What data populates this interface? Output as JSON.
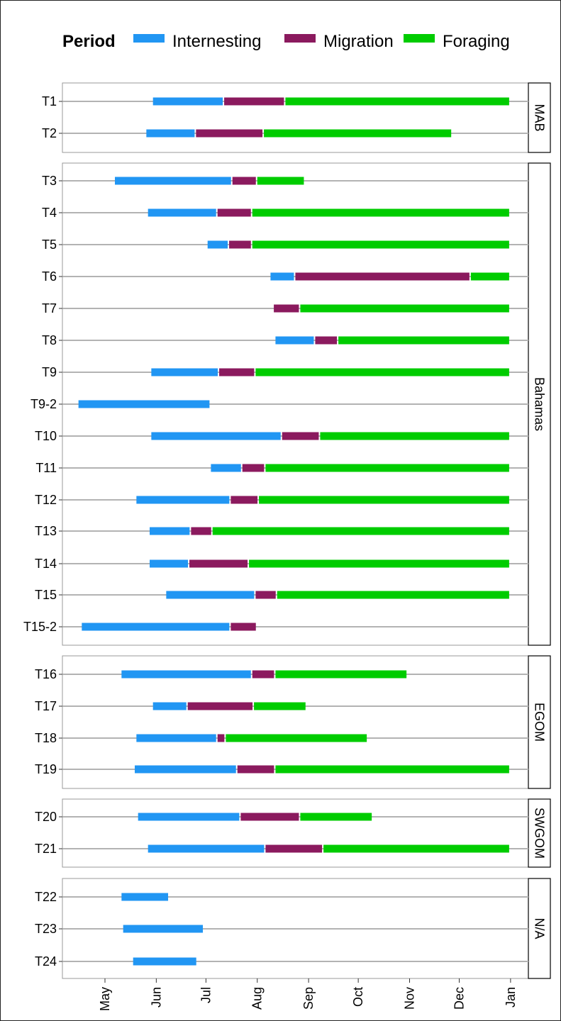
{
  "chart_data": {
    "type": "gantt",
    "legend": {
      "title": "Period",
      "position": "top",
      "entries": [
        {
          "name": "Internesting",
          "color": "#2196F3"
        },
        {
          "name": "Migration",
          "color": "#8B1A5E"
        },
        {
          "name": "Foraging",
          "color": "#00CC00"
        }
      ]
    },
    "x_axis": {
      "ticks": [
        "May",
        "Jun",
        "Jul",
        "Aug",
        "Sep",
        "Oct",
        "Nov",
        "Dec",
        "Jan"
      ],
      "range": [
        "2000-04-12",
        "2001-01-07"
      ]
    },
    "grid": false,
    "facets": [
      {
        "label": "MAB",
        "tracks": [
          {
            "id": "T1",
            "segments": [
              {
                "period": "Internesting",
                "start": "2000-05-30",
                "end": "2000-07-12"
              },
              {
                "period": "Migration",
                "start": "2000-07-12",
                "end": "2000-08-18"
              },
              {
                "period": "Foraging",
                "start": "2000-08-18",
                "end": "2001-01-01"
              }
            ]
          },
          {
            "id": "T2",
            "segments": [
              {
                "period": "Internesting",
                "start": "2000-05-26",
                "end": "2000-06-25"
              },
              {
                "period": "Migration",
                "start": "2000-06-25",
                "end": "2000-08-05"
              },
              {
                "period": "Foraging",
                "start": "2000-08-05",
                "end": "2000-11-27"
              }
            ]
          }
        ]
      },
      {
        "label": "Bahamas",
        "tracks": [
          {
            "id": "T3",
            "segments": [
              {
                "period": "Internesting",
                "start": "2000-05-07",
                "end": "2000-07-17"
              },
              {
                "period": "Migration",
                "start": "2000-07-17",
                "end": "2000-08-01"
              },
              {
                "period": "Foraging",
                "start": "2000-08-01",
                "end": "2000-08-30"
              }
            ]
          },
          {
            "id": "T4",
            "segments": [
              {
                "period": "Internesting",
                "start": "2000-05-27",
                "end": "2000-07-08"
              },
              {
                "period": "Migration",
                "start": "2000-07-08",
                "end": "2000-07-29"
              },
              {
                "period": "Foraging",
                "start": "2000-07-29",
                "end": "2001-01-01"
              }
            ]
          },
          {
            "id": "T5",
            "segments": [
              {
                "period": "Internesting",
                "start": "2000-07-02",
                "end": "2000-07-15"
              },
              {
                "period": "Migration",
                "start": "2000-07-15",
                "end": "2000-07-29"
              },
              {
                "period": "Foraging",
                "start": "2000-07-29",
                "end": "2001-01-01"
              }
            ]
          },
          {
            "id": "T6",
            "segments": [
              {
                "period": "Internesting",
                "start": "2000-08-09",
                "end": "2000-08-24"
              },
              {
                "period": "Migration",
                "start": "2000-08-24",
                "end": "2000-12-08"
              },
              {
                "period": "Foraging",
                "start": "2000-12-08",
                "end": "2001-01-01"
              }
            ]
          },
          {
            "id": "T7",
            "segments": [
              {
                "period": "Migration",
                "start": "2000-08-11",
                "end": "2000-08-27"
              },
              {
                "period": "Foraging",
                "start": "2000-08-27",
                "end": "2001-01-01"
              }
            ]
          },
          {
            "id": "T8",
            "segments": [
              {
                "period": "Internesting",
                "start": "2000-08-12",
                "end": "2000-09-05"
              },
              {
                "period": "Migration",
                "start": "2000-09-05",
                "end": "2000-09-19"
              },
              {
                "period": "Foraging",
                "start": "2000-09-19",
                "end": "2001-01-01"
              }
            ]
          },
          {
            "id": "T9",
            "segments": [
              {
                "period": "Internesting",
                "start": "2000-05-29",
                "end": "2000-07-09"
              },
              {
                "period": "Migration",
                "start": "2000-07-09",
                "end": "2000-07-31"
              },
              {
                "period": "Foraging",
                "start": "2000-07-31",
                "end": "2001-01-01"
              }
            ]
          },
          {
            "id": "T9-2",
            "segments": [
              {
                "period": "Internesting",
                "start": "2000-04-15",
                "end": "2000-07-04"
              }
            ]
          },
          {
            "id": "T10",
            "segments": [
              {
                "period": "Internesting",
                "start": "2000-05-29",
                "end": "2000-08-16"
              },
              {
                "period": "Migration",
                "start": "2000-08-16",
                "end": "2000-09-08"
              },
              {
                "period": "Foraging",
                "start": "2000-09-08",
                "end": "2001-01-01"
              }
            ]
          },
          {
            "id": "T11",
            "segments": [
              {
                "period": "Internesting",
                "start": "2000-07-04",
                "end": "2000-07-23"
              },
              {
                "period": "Migration",
                "start": "2000-07-23",
                "end": "2000-08-06"
              },
              {
                "period": "Foraging",
                "start": "2000-08-06",
                "end": "2001-01-01"
              }
            ]
          },
          {
            "id": "T12",
            "segments": [
              {
                "period": "Internesting",
                "start": "2000-05-20",
                "end": "2000-07-16"
              },
              {
                "period": "Migration",
                "start": "2000-07-16",
                "end": "2000-08-02"
              },
              {
                "period": "Foraging",
                "start": "2000-08-02",
                "end": "2001-01-01"
              }
            ]
          },
          {
            "id": "T13",
            "segments": [
              {
                "period": "Internesting",
                "start": "2000-05-28",
                "end": "2000-06-22"
              },
              {
                "period": "Migration",
                "start": "2000-06-22",
                "end": "2000-07-05"
              },
              {
                "period": "Foraging",
                "start": "2000-07-05",
                "end": "2001-01-01"
              }
            ]
          },
          {
            "id": "T14",
            "segments": [
              {
                "period": "Internesting",
                "start": "2000-05-28",
                "end": "2000-06-21"
              },
              {
                "period": "Migration",
                "start": "2000-06-21",
                "end": "2000-07-27"
              },
              {
                "period": "Foraging",
                "start": "2000-07-27",
                "end": "2001-01-01"
              }
            ]
          },
          {
            "id": "T15",
            "segments": [
              {
                "period": "Internesting",
                "start": "2000-06-07",
                "end": "2000-07-31"
              },
              {
                "period": "Migration",
                "start": "2000-07-31",
                "end": "2000-08-13"
              },
              {
                "period": "Foraging",
                "start": "2000-08-13",
                "end": "2001-01-01"
              }
            ]
          },
          {
            "id": "T15-2",
            "segments": [
              {
                "period": "Internesting",
                "start": "2000-04-17",
                "end": "2000-07-16"
              },
              {
                "period": "Migration",
                "start": "2000-07-16",
                "end": "2000-08-01"
              }
            ]
          }
        ]
      },
      {
        "label": "EGOM",
        "tracks": [
          {
            "id": "T16",
            "segments": [
              {
                "period": "Internesting",
                "start": "2000-05-11",
                "end": "2000-07-29"
              },
              {
                "period": "Migration",
                "start": "2000-07-29",
                "end": "2000-08-12"
              },
              {
                "period": "Foraging",
                "start": "2000-08-12",
                "end": "2000-10-31"
              }
            ]
          },
          {
            "id": "T17",
            "segments": [
              {
                "period": "Internesting",
                "start": "2000-05-30",
                "end": "2000-06-20"
              },
              {
                "period": "Migration",
                "start": "2000-06-20",
                "end": "2000-07-30"
              },
              {
                "period": "Foraging",
                "start": "2000-07-30",
                "end": "2000-08-31"
              }
            ]
          },
          {
            "id": "T18",
            "segments": [
              {
                "period": "Internesting",
                "start": "2000-05-20",
                "end": "2000-07-08"
              },
              {
                "period": "Migration",
                "start": "2000-07-08",
                "end": "2000-07-13"
              },
              {
                "period": "Foraging",
                "start": "2000-07-13",
                "end": "2000-10-07"
              }
            ]
          },
          {
            "id": "T19",
            "segments": [
              {
                "period": "Internesting",
                "start": "2000-05-19",
                "end": "2000-07-20"
              },
              {
                "period": "Migration",
                "start": "2000-07-20",
                "end": "2000-08-12"
              },
              {
                "period": "Foraging",
                "start": "2000-08-12",
                "end": "2001-01-01"
              }
            ]
          }
        ]
      },
      {
        "label": "SWGOM",
        "tracks": [
          {
            "id": "T20",
            "segments": [
              {
                "period": "Internesting",
                "start": "2000-05-21",
                "end": "2000-07-22"
              },
              {
                "period": "Migration",
                "start": "2000-07-22",
                "end": "2000-08-27"
              },
              {
                "period": "Foraging",
                "start": "2000-08-27",
                "end": "2000-10-10"
              }
            ]
          },
          {
            "id": "T21",
            "segments": [
              {
                "period": "Internesting",
                "start": "2000-05-27",
                "end": "2000-08-06"
              },
              {
                "period": "Migration",
                "start": "2000-08-06",
                "end": "2000-09-10"
              },
              {
                "period": "Foraging",
                "start": "2000-09-10",
                "end": "2001-01-01"
              }
            ]
          }
        ]
      },
      {
        "label": "N/A",
        "tracks": [
          {
            "id": "T22",
            "segments": [
              {
                "period": "Internesting",
                "start": "2000-05-11",
                "end": "2000-06-09"
              }
            ]
          },
          {
            "id": "T23",
            "segments": [
              {
                "period": "Internesting",
                "start": "2000-05-12",
                "end": "2000-06-30"
              }
            ]
          },
          {
            "id": "T24",
            "segments": [
              {
                "period": "Internesting",
                "start": "2000-05-18",
                "end": "2000-06-26"
              }
            ]
          }
        ]
      }
    ]
  }
}
